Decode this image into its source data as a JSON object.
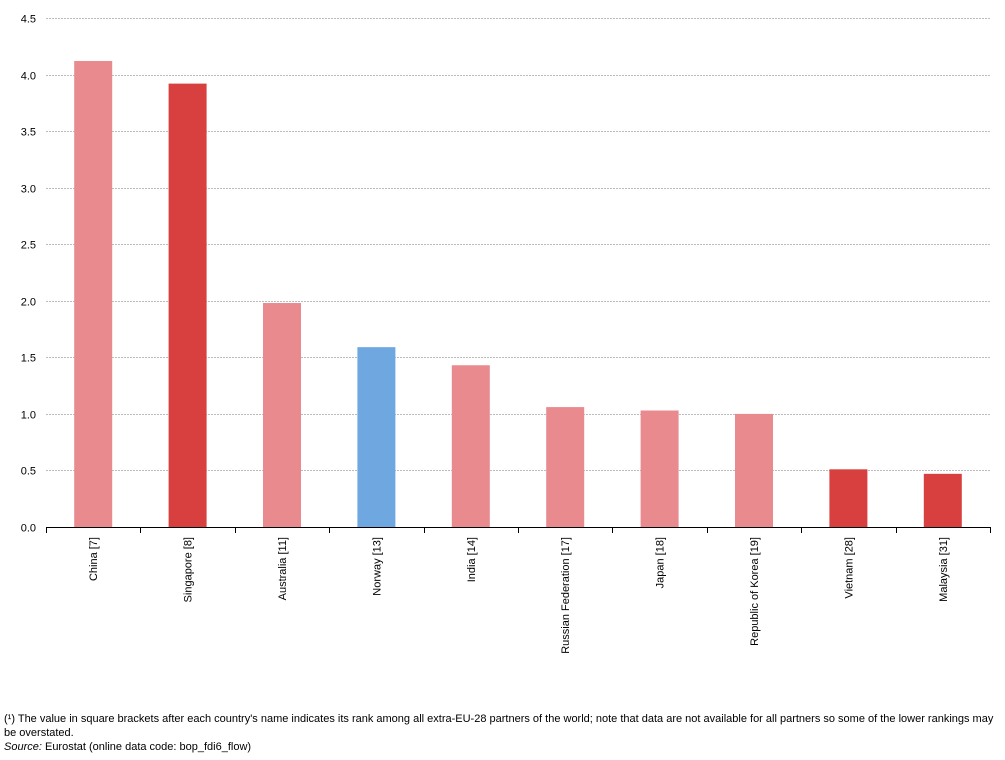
{
  "chart_data": {
    "type": "bar",
    "categories": [
      "China [7]",
      "Singapore [8]",
      "Australia [11]",
      "Norway [13]",
      "India [14]",
      "Russian Federation [17]",
      "Japan [18]",
      "Republic of Korea [19]",
      "Vietnam [28]",
      "Malaysia [31]"
    ],
    "values": [
      4.12,
      3.92,
      1.98,
      1.59,
      1.43,
      1.06,
      1.03,
      1.0,
      0.51,
      0.47
    ],
    "bar_colors": [
      "#e88a8e",
      "#d8403f",
      "#e88a8e",
      "#6fa8e0",
      "#e88a8e",
      "#e88a8e",
      "#e88a8e",
      "#e88a8e",
      "#d8403f",
      "#d8403f"
    ],
    "ylim": [
      0,
      4.5
    ],
    "yticks": [
      0.0,
      0.5,
      1.0,
      1.5,
      2.0,
      2.5,
      3.0,
      3.5,
      4.0,
      4.5
    ],
    "ytick_labels": [
      "0.0",
      "0.5",
      "1.0",
      "1.5",
      "2.0",
      "2.5",
      "3.0",
      "3.5",
      "4.0",
      "4.5"
    ],
    "grid": true,
    "grid_color": "#bbbbbb",
    "title": "",
    "xlabel": "",
    "ylabel": ""
  },
  "footnote": {
    "note": "(¹) The value in square brackets after each country's name indicates its rank among all extra-EU-28 partners of the world; note that data are not available for all partners so some of the lower rankings may be overstated.",
    "source_label": "Source:",
    "source_text": " Eurostat (online data code: bop_fdi6_flow)"
  }
}
